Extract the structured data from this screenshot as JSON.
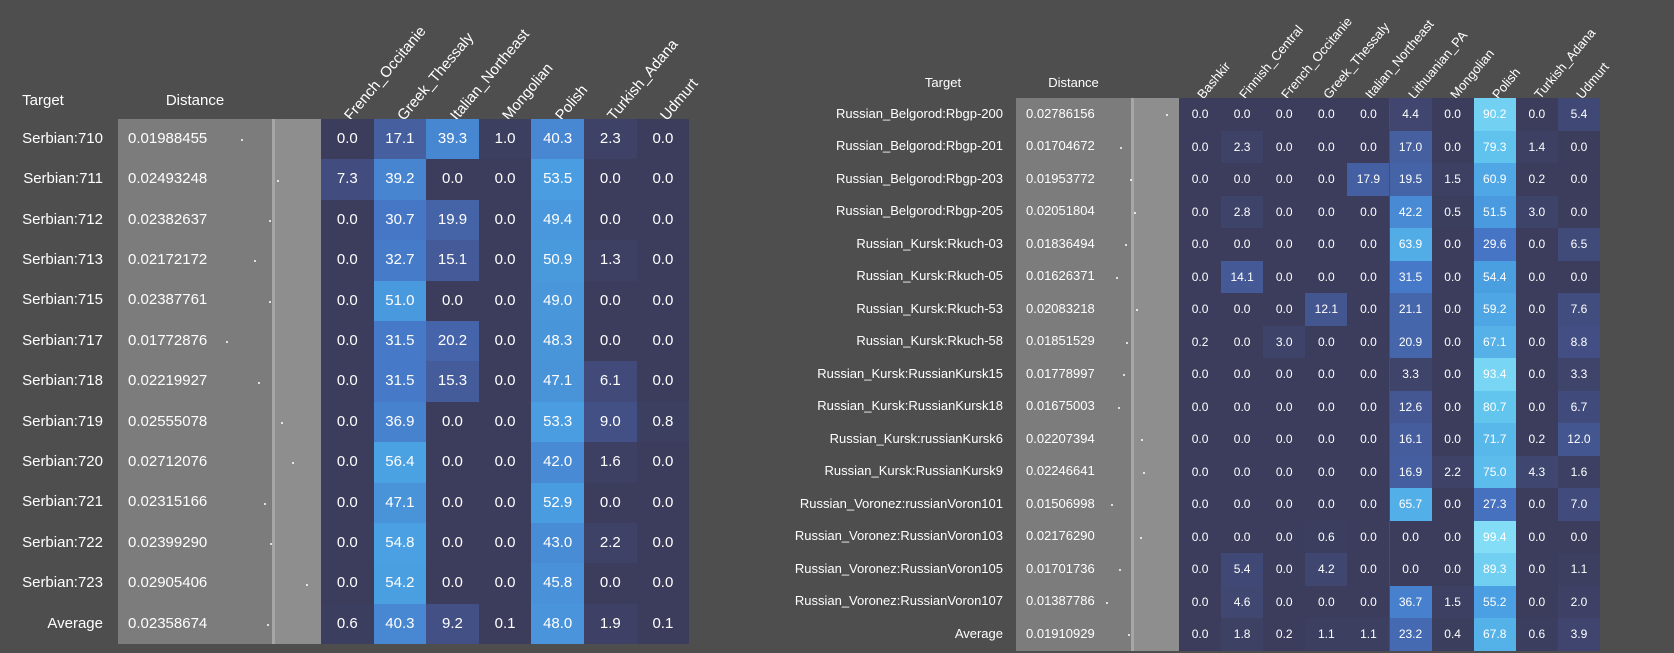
{
  "chart_data": [
    {
      "type": "heatmap",
      "target_header": "Target",
      "distance_header": "Distance",
      "columns": [
        "French_Occitanie",
        "Greek_Thessaly",
        "Italian_Northeast",
        "Mongolian",
        "Polish",
        "Turkish_Adana",
        "Udmurt"
      ],
      "rows": [
        {
          "target": "Serbian:710",
          "distance": "0.01988455",
          "values": [
            "0.0",
            "17.1",
            "39.3",
            "1.0",
            "40.3",
            "2.3",
            "0.0"
          ]
        },
        {
          "target": "Serbian:711",
          "distance": "0.02493248",
          "values": [
            "7.3",
            "39.2",
            "0.0",
            "0.0",
            "53.5",
            "0.0",
            "0.0"
          ]
        },
        {
          "target": "Serbian:712",
          "distance": "0.02382637",
          "values": [
            "0.0",
            "30.7",
            "19.9",
            "0.0",
            "49.4",
            "0.0",
            "0.0"
          ]
        },
        {
          "target": "Serbian:713",
          "distance": "0.02172172",
          "values": [
            "0.0",
            "32.7",
            "15.1",
            "0.0",
            "50.9",
            "1.3",
            "0.0"
          ]
        },
        {
          "target": "Serbian:715",
          "distance": "0.02387761",
          "values": [
            "0.0",
            "51.0",
            "0.0",
            "0.0",
            "49.0",
            "0.0",
            "0.0"
          ]
        },
        {
          "target": "Serbian:717",
          "distance": "0.01772876",
          "values": [
            "0.0",
            "31.5",
            "20.2",
            "0.0",
            "48.3",
            "0.0",
            "0.0"
          ]
        },
        {
          "target": "Serbian:718",
          "distance": "0.02219927",
          "values": [
            "0.0",
            "31.5",
            "15.3",
            "0.0",
            "47.1",
            "6.1",
            "0.0"
          ]
        },
        {
          "target": "Serbian:719",
          "distance": "0.02555078",
          "values": [
            "0.0",
            "36.9",
            "0.0",
            "0.0",
            "53.3",
            "9.0",
            "0.8"
          ]
        },
        {
          "target": "Serbian:720",
          "distance": "0.02712076",
          "values": [
            "0.0",
            "56.4",
            "0.0",
            "0.0",
            "42.0",
            "1.6",
            "0.0"
          ]
        },
        {
          "target": "Serbian:721",
          "distance": "0.02315166",
          "values": [
            "0.0",
            "47.1",
            "0.0",
            "0.0",
            "52.9",
            "0.0",
            "0.0"
          ]
        },
        {
          "target": "Serbian:722",
          "distance": "0.02399290",
          "values": [
            "0.0",
            "54.8",
            "0.0",
            "0.0",
            "43.0",
            "2.2",
            "0.0"
          ]
        },
        {
          "target": "Serbian:723",
          "distance": "0.02905406",
          "values": [
            "0.0",
            "54.2",
            "0.0",
            "0.0",
            "45.8",
            "0.0",
            "0.0"
          ]
        },
        {
          "target": "Average",
          "distance": "0.02358674",
          "values": [
            "0.6",
            "40.3",
            "9.2",
            "0.1",
            "48.0",
            "1.9",
            "0.1"
          ]
        }
      ]
    },
    {
      "type": "heatmap",
      "target_header": "Target",
      "distance_header": "Distance",
      "columns": [
        "Bashkir",
        "Finnish_Central",
        "French_Occitanie",
        "Greek_Thessaly",
        "Italian_Northeast",
        "Lithuanian_PA",
        "Mongolian",
        "Polish",
        "Turkish_Adana",
        "Udmurt"
      ],
      "rows": [
        {
          "target": "Russian_Belgorod:Rbgp-200",
          "distance": "0.02786156",
          "values": [
            "0.0",
            "0.0",
            "0.0",
            "0.0",
            "0.0",
            "4.4",
            "0.0",
            "90.2",
            "0.0",
            "5.4"
          ]
        },
        {
          "target": "Russian_Belgorod:Rbgp-201",
          "distance": "0.01704672",
          "values": [
            "0.0",
            "2.3",
            "0.0",
            "0.0",
            "0.0",
            "17.0",
            "0.0",
            "79.3",
            "1.4",
            "0.0"
          ]
        },
        {
          "target": "Russian_Belgorod:Rbgp-203",
          "distance": "0.01953772",
          "values": [
            "0.0",
            "0.0",
            "0.0",
            "0.0",
            "17.9",
            "19.5",
            "1.5",
            "60.9",
            "0.2",
            "0.0"
          ]
        },
        {
          "target": "Russian_Belgorod:Rbgp-205",
          "distance": "0.02051804",
          "values": [
            "0.0",
            "2.8",
            "0.0",
            "0.0",
            "0.0",
            "42.2",
            "0.5",
            "51.5",
            "3.0",
            "0.0"
          ]
        },
        {
          "target": "Russian_Kursk:Rkuch-03",
          "distance": "0.01836494",
          "values": [
            "0.0",
            "0.0",
            "0.0",
            "0.0",
            "0.0",
            "63.9",
            "0.0",
            "29.6",
            "0.0",
            "6.5"
          ]
        },
        {
          "target": "Russian_Kursk:Rkuch-05",
          "distance": "0.01626371",
          "values": [
            "0.0",
            "14.1",
            "0.0",
            "0.0",
            "0.0",
            "31.5",
            "0.0",
            "54.4",
            "0.0",
            "0.0"
          ]
        },
        {
          "target": "Russian_Kursk:Rkuch-53",
          "distance": "0.02083218",
          "values": [
            "0.0",
            "0.0",
            "0.0",
            "12.1",
            "0.0",
            "21.1",
            "0.0",
            "59.2",
            "0.0",
            "7.6"
          ]
        },
        {
          "target": "Russian_Kursk:Rkuch-58",
          "distance": "0.01851529",
          "values": [
            "0.2",
            "0.0",
            "3.0",
            "0.0",
            "0.0",
            "20.9",
            "0.0",
            "67.1",
            "0.0",
            "8.8"
          ]
        },
        {
          "target": "Russian_Kursk:RussianKursk15",
          "distance": "0.01778997",
          "values": [
            "0.0",
            "0.0",
            "0.0",
            "0.0",
            "0.0",
            "3.3",
            "0.0",
            "93.4",
            "0.0",
            "3.3"
          ]
        },
        {
          "target": "Russian_Kursk:RussianKursk18",
          "distance": "0.01675003",
          "values": [
            "0.0",
            "0.0",
            "0.0",
            "0.0",
            "0.0",
            "12.6",
            "0.0",
            "80.7",
            "0.0",
            "6.7"
          ]
        },
        {
          "target": "Russian_Kursk:russianKursk6",
          "distance": "0.02207394",
          "values": [
            "0.0",
            "0.0",
            "0.0",
            "0.0",
            "0.0",
            "16.1",
            "0.0",
            "71.7",
            "0.2",
            "12.0"
          ]
        },
        {
          "target": "Russian_Kursk:RussianKursk9",
          "distance": "0.02246641",
          "values": [
            "0.0",
            "0.0",
            "0.0",
            "0.0",
            "0.0",
            "16.9",
            "2.2",
            "75.0",
            "4.3",
            "1.6"
          ]
        },
        {
          "target": "Russian_Voronez:russianVoron101",
          "distance": "0.01506998",
          "values": [
            "0.0",
            "0.0",
            "0.0",
            "0.0",
            "0.0",
            "65.7",
            "0.0",
            "27.3",
            "0.0",
            "7.0"
          ]
        },
        {
          "target": "Russian_Voronez:RussianVoron103",
          "distance": "0.02176290",
          "values": [
            "0.0",
            "0.0",
            "0.0",
            "0.6",
            "0.0",
            "0.0",
            "0.0",
            "99.4",
            "0.0",
            "0.0"
          ]
        },
        {
          "target": "Russian_Voronez:RussianVoron105",
          "distance": "0.01701736",
          "values": [
            "0.0",
            "5.4",
            "0.0",
            "4.2",
            "0.0",
            "0.0",
            "0.0",
            "89.3",
            "0.0",
            "1.1"
          ]
        },
        {
          "target": "Russian_Voronez:RussianVoron107",
          "distance": "0.01387786",
          "values": [
            "0.0",
            "4.6",
            "0.0",
            "0.0",
            "0.0",
            "36.7",
            "1.5",
            "55.2",
            "0.0",
            "2.0"
          ]
        },
        {
          "target": "Average",
          "distance": "0.01910929",
          "values": [
            "0.0",
            "1.8",
            "0.2",
            "1.1",
            "1.1",
            "23.2",
            "0.4",
            "67.8",
            "0.6",
            "3.9"
          ]
        }
      ]
    }
  ]
}
